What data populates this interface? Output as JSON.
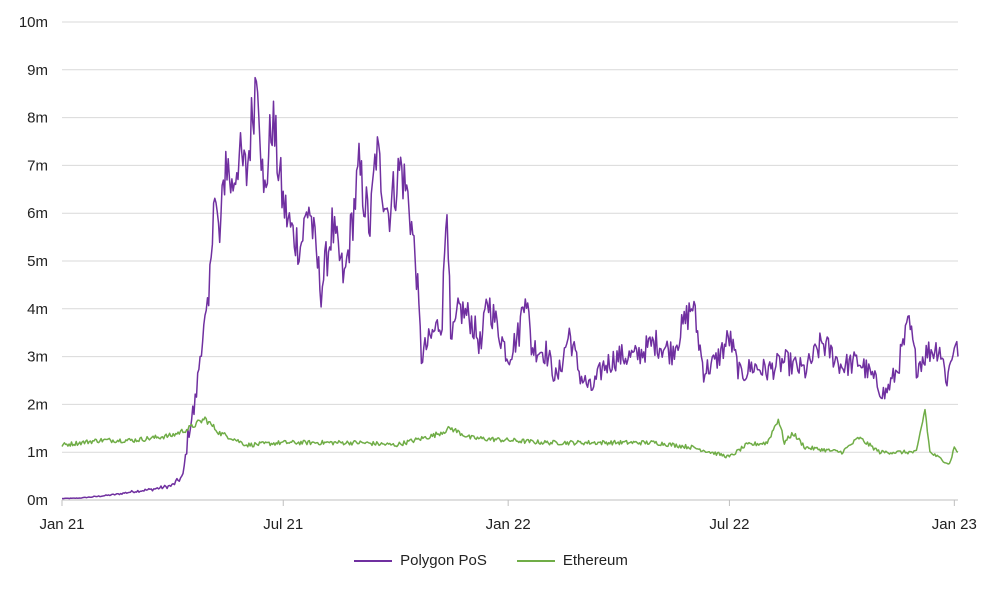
{
  "chart_data": {
    "type": "line",
    "title": "",
    "xlabel": "",
    "ylabel": "",
    "x_ticks": [
      "Jan 21",
      "Jul 21",
      "Jan 22",
      "Jul 22",
      "Jan 23"
    ],
    "y_ticks": [
      "0m",
      "1m",
      "2m",
      "3m",
      "4m",
      "5m",
      "6m",
      "7m",
      "8m",
      "9m",
      "10m"
    ],
    "ylim": [
      0,
      10
    ],
    "xlim": [
      "2021-01-01",
      "2023-01-04"
    ],
    "grid": "horizontal",
    "legend_position": "bottom",
    "series": [
      {
        "name": "Polygon PoS",
        "color": "#7030a0",
        "points": [
          [
            "2021-01-01",
            0.03
          ],
          [
            "2021-01-15",
            0.04
          ],
          [
            "2021-02-01",
            0.08
          ],
          [
            "2021-02-15",
            0.12
          ],
          [
            "2021-03-01",
            0.18
          ],
          [
            "2021-03-15",
            0.22
          ],
          [
            "2021-04-01",
            0.3
          ],
          [
            "2021-04-10",
            0.5
          ],
          [
            "2021-04-15",
            1.5
          ],
          [
            "2021-04-20",
            2.0
          ],
          [
            "2021-04-25",
            3.3
          ],
          [
            "2021-05-01",
            4.0
          ],
          [
            "2021-05-05",
            6.5
          ],
          [
            "2021-05-10",
            5.4
          ],
          [
            "2021-05-15",
            7.2
          ],
          [
            "2021-05-20",
            6.5
          ],
          [
            "2021-05-25",
            7.2
          ],
          [
            "2021-06-01",
            6.8
          ],
          [
            "2021-06-10",
            9.2
          ],
          [
            "2021-06-15",
            6.2
          ],
          [
            "2021-06-22",
            8.0
          ],
          [
            "2021-07-01",
            6.2
          ],
          [
            "2021-07-08",
            5.6
          ],
          [
            "2021-07-15",
            5.3
          ],
          [
            "2021-07-22",
            6.2
          ],
          [
            "2021-08-01",
            4.4
          ],
          [
            "2021-08-10",
            5.7
          ],
          [
            "2021-08-20",
            4.6
          ],
          [
            "2021-09-01",
            6.9
          ],
          [
            "2021-09-10",
            5.7
          ],
          [
            "2021-09-15",
            7.3
          ],
          [
            "2021-09-25",
            6.0
          ],
          [
            "2021-10-05",
            7.0
          ],
          [
            "2021-10-12",
            6.2
          ],
          [
            "2021-10-18",
            4.8
          ],
          [
            "2021-10-22",
            3.0
          ],
          [
            "2021-11-01",
            3.5
          ],
          [
            "2021-11-08",
            3.8
          ],
          [
            "2021-11-12",
            6.55
          ],
          [
            "2021-11-15",
            3.2
          ],
          [
            "2021-11-22",
            4.0
          ],
          [
            "2021-12-01",
            3.8
          ],
          [
            "2021-12-10",
            3.2
          ],
          [
            "2021-12-15",
            4.2
          ],
          [
            "2021-12-25",
            3.5
          ],
          [
            "2022-01-01",
            3.0
          ],
          [
            "2022-01-10",
            3.5
          ],
          [
            "2022-01-15",
            4.5
          ],
          [
            "2022-01-20",
            3.2
          ],
          [
            "2022-02-01",
            3.1
          ],
          [
            "2022-02-10",
            2.5
          ],
          [
            "2022-02-20",
            3.5
          ],
          [
            "2022-03-01",
            2.6
          ],
          [
            "2022-03-10",
            2.3
          ],
          [
            "2022-03-20",
            2.8
          ],
          [
            "2022-04-01",
            3.0
          ],
          [
            "2022-04-15",
            3.0
          ],
          [
            "2022-05-01",
            3.3
          ],
          [
            "2022-05-15",
            3.1
          ],
          [
            "2022-06-01",
            4.1
          ],
          [
            "2022-06-10",
            2.7
          ],
          [
            "2022-06-20",
            2.9
          ],
          [
            "2022-07-01",
            3.4
          ],
          [
            "2022-07-10",
            2.6
          ],
          [
            "2022-07-20",
            2.8
          ],
          [
            "2022-08-01",
            2.7
          ],
          [
            "2022-08-15",
            2.9
          ],
          [
            "2022-09-01",
            2.7
          ],
          [
            "2022-09-15",
            3.3
          ],
          [
            "2022-10-01",
            2.8
          ],
          [
            "2022-10-15",
            2.9
          ],
          [
            "2022-10-25",
            2.6
          ],
          [
            "2022-11-05",
            2.2
          ],
          [
            "2022-11-15",
            2.7
          ],
          [
            "2022-11-25",
            3.7
          ],
          [
            "2022-12-01",
            2.8
          ],
          [
            "2022-12-10",
            3.1
          ],
          [
            "2022-12-20",
            3.2
          ],
          [
            "2022-12-26",
            2.5
          ],
          [
            "2023-01-01",
            3.3
          ],
          [
            "2023-01-04",
            3.0
          ]
        ]
      },
      {
        "name": "Ethereum",
        "color": "#70ad47",
        "points": [
          [
            "2021-01-01",
            1.15
          ],
          [
            "2021-02-01",
            1.25
          ],
          [
            "2021-03-01",
            1.25
          ],
          [
            "2021-04-01",
            1.35
          ],
          [
            "2021-04-15",
            1.5
          ],
          [
            "2021-04-28",
            1.7
          ],
          [
            "2021-05-10",
            1.4
          ],
          [
            "2021-05-20",
            1.3
          ],
          [
            "2021-06-01",
            1.15
          ],
          [
            "2021-07-01",
            1.2
          ],
          [
            "2021-08-01",
            1.2
          ],
          [
            "2021-09-01",
            1.2
          ],
          [
            "2021-10-01",
            1.15
          ],
          [
            "2021-11-01",
            1.35
          ],
          [
            "2021-11-15",
            1.5
          ],
          [
            "2021-12-01",
            1.3
          ],
          [
            "2022-01-01",
            1.25
          ],
          [
            "2022-02-01",
            1.2
          ],
          [
            "2022-03-01",
            1.2
          ],
          [
            "2022-04-01",
            1.2
          ],
          [
            "2022-05-01",
            1.2
          ],
          [
            "2022-06-01",
            1.1
          ],
          [
            "2022-07-01",
            0.9
          ],
          [
            "2022-07-15",
            1.15
          ],
          [
            "2022-08-01",
            1.2
          ],
          [
            "2022-08-10",
            1.7
          ],
          [
            "2022-08-15",
            1.2
          ],
          [
            "2022-08-22",
            1.4
          ],
          [
            "2022-09-01",
            1.1
          ],
          [
            "2022-10-01",
            1.0
          ],
          [
            "2022-10-15",
            1.3
          ],
          [
            "2022-11-01",
            1.0
          ],
          [
            "2022-11-20",
            1.0
          ],
          [
            "2022-12-01",
            1.0
          ],
          [
            "2022-12-08",
            1.9
          ],
          [
            "2022-12-12",
            1.0
          ],
          [
            "2022-12-28",
            0.75
          ],
          [
            "2023-01-01",
            1.1
          ],
          [
            "2023-01-04",
            1.0
          ]
        ]
      }
    ]
  }
}
